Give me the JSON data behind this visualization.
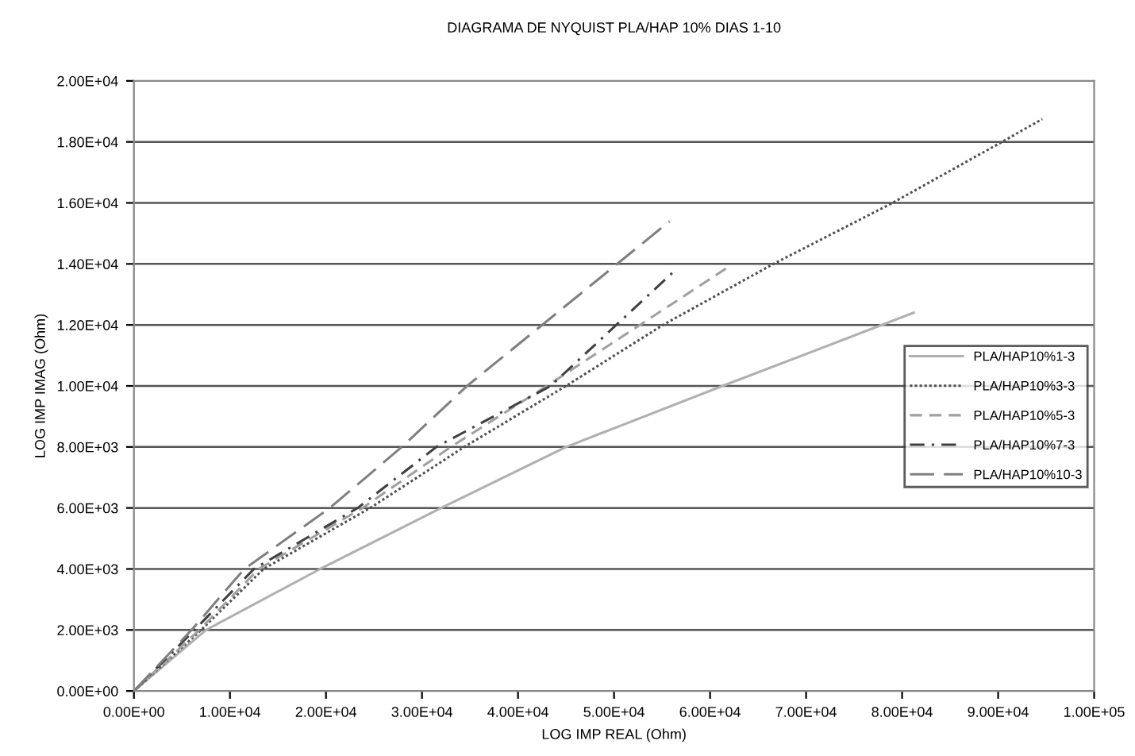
{
  "chart_data": {
    "type": "line",
    "title": "DIAGRAMA DE NYQUIST PLA/HAP 10% DIAS 1-10",
    "xlabel": "LOG IMP REAL (Ohm)",
    "ylabel": "LOG IMP IMAG (Ohm)",
    "xlim": [
      0,
      100000
    ],
    "ylim": [
      0,
      20000
    ],
    "xticks": [
      {
        "value": 0,
        "label": "0.00E+00"
      },
      {
        "value": 10000,
        "label": "1.00E+04"
      },
      {
        "value": 20000,
        "label": "2.00E+04"
      },
      {
        "value": 30000,
        "label": "3.00E+04"
      },
      {
        "value": 40000,
        "label": "4.00E+04"
      },
      {
        "value": 50000,
        "label": "5.00E+04"
      },
      {
        "value": 60000,
        "label": "6.00E+04"
      },
      {
        "value": 70000,
        "label": "7.00E+04"
      },
      {
        "value": 80000,
        "label": "8.00E+04"
      },
      {
        "value": 90000,
        "label": "9.00E+04"
      },
      {
        "value": 100000,
        "label": "1.00E+05"
      }
    ],
    "yticks": [
      {
        "value": 0,
        "label": "0.00E+00"
      },
      {
        "value": 2000,
        "label": "2.00E+03"
      },
      {
        "value": 4000,
        "label": "4.00E+03"
      },
      {
        "value": 6000,
        "label": "6.00E+03"
      },
      {
        "value": 8000,
        "label": "8.00E+03"
      },
      {
        "value": 10000,
        "label": "1.00E+04"
      },
      {
        "value": 12000,
        "label": "1.20E+04"
      },
      {
        "value": 14000,
        "label": "1.40E+04"
      },
      {
        "value": 16000,
        "label": "1.60E+04"
      },
      {
        "value": 18000,
        "label": "1.80E+04"
      },
      {
        "value": 20000,
        "label": "2.00E+04"
      }
    ],
    "grid": "y",
    "legend": "right",
    "marker": "none",
    "series": [
      {
        "name": "PLA/HAP10%1-3",
        "color": "#b0b0b0",
        "line_style": "solid",
        "x": [
          0,
          7500,
          19400,
          32000,
          45000,
          61300,
          81200
        ],
        "values": [
          0,
          2000,
          4000,
          6000,
          8000,
          10000,
          12400
        ]
      },
      {
        "name": "PLA/HAP10%3-3",
        "color": "#505050",
        "line_style": "dotted",
        "x": [
          0,
          7000,
          13500,
          24600,
          34400,
          45000,
          55100,
          66600,
          79000,
          90400,
          94600
        ],
        "values": [
          0,
          2000,
          4000,
          6000,
          8000,
          10000,
          12000,
          14000,
          16000,
          18000,
          18750
        ]
      },
      {
        "name": "PLA/HAP10%5-3",
        "color": "#a0a0a0",
        "line_style": "dashed",
        "x": [
          0,
          6800,
          13000,
          23800,
          33000,
          43000,
          52700,
          62200
        ],
        "values": [
          0,
          2000,
          4000,
          6000,
          8000,
          10000,
          12000,
          13960
        ]
      },
      {
        "name": "PLA/HAP10%7-3",
        "color": "#404040",
        "line_style": "dashdot",
        "x": [
          0,
          6300,
          12500,
          23300,
          31500,
          43400,
          56400
        ],
        "values": [
          0,
          2000,
          4000,
          6000,
          8000,
          10000,
          13800
        ]
      },
      {
        "name": "PLA/HAP10%10-3",
        "color": "#808080",
        "line_style": "longdash",
        "x": [
          0,
          6000,
          11500,
          20400,
          27900,
          34700,
          55800
        ],
        "values": [
          0,
          2000,
          4000,
          6000,
          8000,
          10000,
          15400
        ]
      }
    ]
  }
}
